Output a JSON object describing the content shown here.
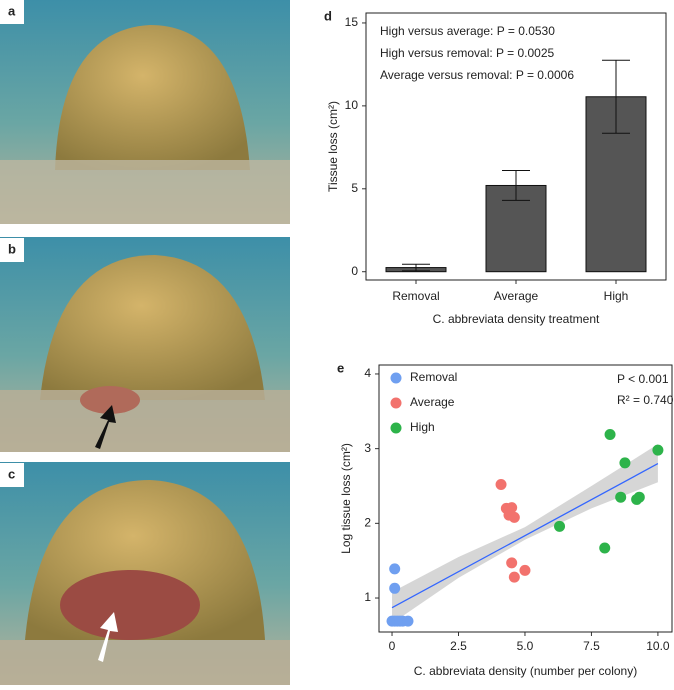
{
  "photos": {
    "labels": [
      "a",
      "b",
      "c"
    ]
  },
  "chart_data": [
    {
      "type": "bar",
      "label": "d",
      "xlabel": "C. abbreviata density treatment",
      "ylabel": "Tissue loss (cm²)",
      "annotations": [
        "High versus average: P = 0.0530",
        "High versus removal: P = 0.0025",
        "Average versus removal: P = 0.0006"
      ],
      "categories": [
        "Removal",
        "Average",
        "High"
      ],
      "values": [
        0.25,
        5.2,
        10.55
      ],
      "errors": [
        0.2,
        0.9,
        2.2
      ],
      "color": "#555555",
      "ylim": [
        -0.5,
        15.6
      ],
      "yticks": [
        0,
        5,
        10,
        15
      ]
    },
    {
      "type": "scatter",
      "label": "e",
      "xlabel": "C. abbreviata density (number per colony)",
      "ylabel": "Log tissue loss (cm²)",
      "annotations": [
        "P < 0.001",
        "R² = 0.740"
      ],
      "xlim": [
        -0.49,
        10.53
      ],
      "ylim": [
        0.545,
        4.12
      ],
      "xticks": [
        0,
        2.5,
        {
          "value": 5,
          "label": "5.0"
        },
        7.5,
        {
          "value": 10,
          "label": "10.0"
        }
      ],
      "yticks": [
        1,
        2,
        3,
        4
      ],
      "series": [
        {
          "name": "Removal",
          "color": "#6f9ff0",
          "x": [
            0.1,
            0.1,
            0,
            0.1,
            0.2,
            0.3,
            0.4,
            0.6
          ],
          "values": [
            1.39,
            1.13,
            0.69,
            0.69,
            0.69,
            0.69,
            0.69,
            0.69
          ]
        },
        {
          "name": "Average",
          "color": "#f2726d",
          "x": [
            4.1,
            4.3,
            4.5,
            4.4,
            4.6,
            4.5,
            5.0,
            4.6
          ],
          "values": [
            2.52,
            2.2,
            2.21,
            2.11,
            2.08,
            1.47,
            1.37,
            1.28
          ]
        },
        {
          "name": "High",
          "color": "#2db34a",
          "x": [
            6.3,
            8.0,
            8.2,
            8.76,
            8.6,
            9.2,
            9.3,
            10.0
          ],
          "values": [
            1.96,
            1.67,
            3.19,
            2.81,
            2.35,
            2.32,
            2.35,
            2.98
          ]
        }
      ],
      "line": {
        "color": "#3366ff",
        "x": [
          0,
          10
        ],
        "values": [
          0.87,
          2.8
        ]
      },
      "band": {
        "x": [
          0,
          2.5,
          5,
          7.5,
          10
        ],
        "lower": [
          0.66,
          1.27,
          1.78,
          2.2,
          2.55
        ],
        "upper": [
          1.08,
          1.55,
          1.95,
          2.5,
          3.06
        ]
      }
    }
  ]
}
